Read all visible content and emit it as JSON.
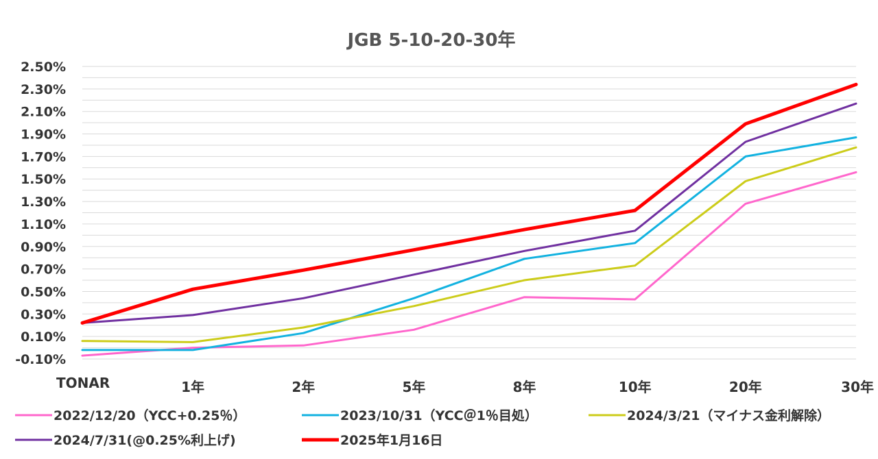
{
  "chart_data": {
    "type": "line",
    "title": "JGB 5-10-20-30年",
    "xlabel": "",
    "ylabel": "",
    "categories": [
      "TONAR",
      "1年",
      "2年",
      "5年",
      "8年",
      "10年",
      "20年",
      "30年"
    ],
    "y_ticks": [
      "-0.10%",
      "0.10%",
      "0.30%",
      "0.50%",
      "0.70%",
      "0.90%",
      "1.10%",
      "1.30%",
      "1.50%",
      "1.70%",
      "1.90%",
      "2.10%",
      "2.30%",
      "2.50%"
    ],
    "ylim": [
      -0.1,
      2.5
    ],
    "grid": true,
    "legend_position": "bottom",
    "series": [
      {
        "name": "2022/12/20（YCC+0.25％）",
        "color": "#ff66cc",
        "width": 3,
        "values": [
          -0.07,
          0.0,
          0.02,
          0.16,
          0.45,
          0.43,
          1.28,
          1.56
        ]
      },
      {
        "name": "2023/10/31（YCC＠1％目処）",
        "color": "#12b2e0",
        "width": 3,
        "values": [
          -0.02,
          -0.02,
          0.13,
          0.44,
          0.79,
          0.93,
          1.7,
          1.87
        ]
      },
      {
        "name": "2024/3/21（マイナス金利解除）",
        "color": "#cccc1a",
        "width": 3,
        "values": [
          0.06,
          0.05,
          0.18,
          0.37,
          0.6,
          0.73,
          1.48,
          1.78
        ]
      },
      {
        "name": "2024/7/31(@0.25%利上げ)",
        "color": "#7030a0",
        "width": 3,
        "values": [
          0.22,
          0.29,
          0.44,
          0.65,
          0.86,
          1.04,
          1.83,
          2.17
        ]
      },
      {
        "name": "2025年1月16日",
        "color": "#ff0000",
        "width": 5,
        "values": [
          0.22,
          0.52,
          0.69,
          0.87,
          1.05,
          1.22,
          1.99,
          2.34
        ]
      }
    ]
  }
}
